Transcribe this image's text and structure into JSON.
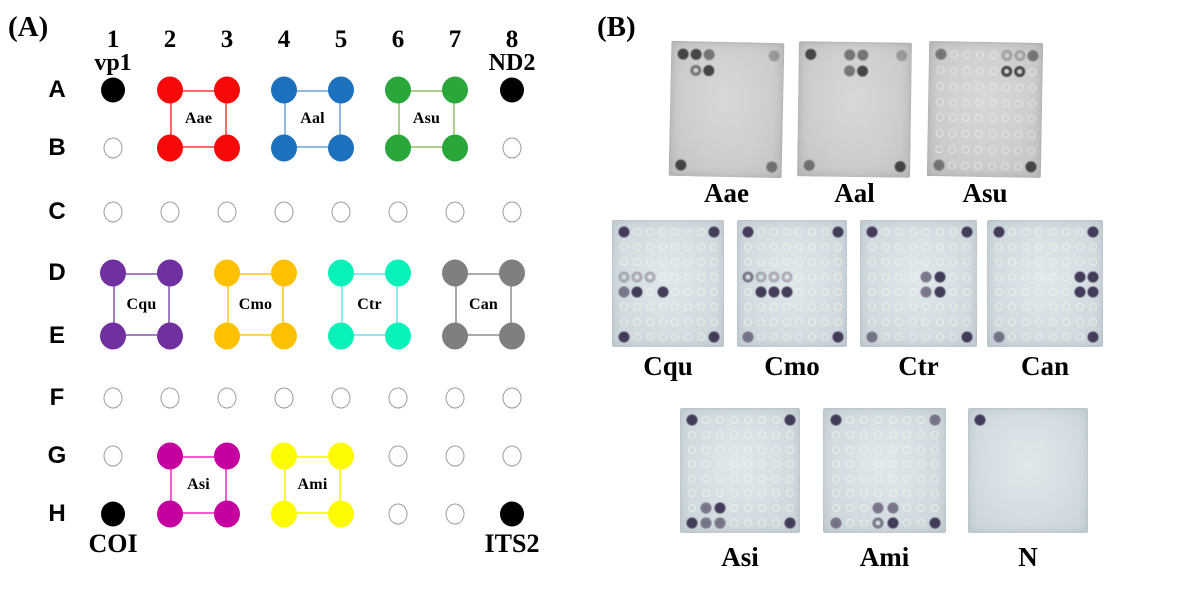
{
  "figure": {
    "panelA": {
      "label": "(A)",
      "col_headers": [
        "1",
        "2",
        "3",
        "4",
        "5",
        "6",
        "7",
        "8"
      ],
      "row_labels": [
        "A",
        "B",
        "C",
        "D",
        "E",
        "F",
        "G",
        "H"
      ],
      "marker_color": "#000000",
      "empty_spot_border": "#9b9b9b",
      "corner_markers": [
        {
          "gene": "vp1",
          "position": "A1",
          "label_pos": "above"
        },
        {
          "gene": "ND2",
          "position": "A8",
          "label_pos": "above"
        },
        {
          "gene": "COI",
          "position": "H1",
          "label_pos": "below"
        },
        {
          "gene": "ITS2",
          "position": "H8",
          "label_pos": "below"
        }
      ],
      "empty_spot_positions": [
        "B1",
        "B8",
        "C1",
        "C2",
        "C3",
        "C4",
        "C5",
        "C6",
        "C7",
        "C8",
        "F1",
        "F2",
        "F3",
        "F4",
        "F5",
        "F6",
        "F7",
        "F8",
        "G1",
        "G6",
        "G7",
        "G8",
        "H6",
        "H7"
      ],
      "species_groups": [
        {
          "label": "Aae",
          "rows": [
            "A",
            "B"
          ],
          "cols": [
            2,
            3
          ],
          "dot_color": "#f80909",
          "line_color": "#fb6a6a"
        },
        {
          "label": "Aal",
          "rows": [
            "A",
            "B"
          ],
          "cols": [
            4,
            5
          ],
          "dot_color": "#1d70bd",
          "line_color": "#93b9e0"
        },
        {
          "label": "Asu",
          "rows": [
            "A",
            "B"
          ],
          "cols": [
            6,
            7
          ],
          "dot_color": "#29a73b",
          "line_color": "#abd08d"
        },
        {
          "label": "Cqu",
          "rows": [
            "D",
            "E"
          ],
          "cols": [
            1,
            2
          ],
          "dot_color": "#7030a0",
          "line_color": "#a37fc5"
        },
        {
          "label": "Cmo",
          "rows": [
            "D",
            "E"
          ],
          "cols": [
            3,
            4
          ],
          "dot_color": "#fec101",
          "line_color": "#fcd44f"
        },
        {
          "label": "Ctr",
          "rows": [
            "D",
            "E"
          ],
          "cols": [
            5,
            6
          ],
          "dot_color": "#08f1b9",
          "line_color": "#92e6f2"
        },
        {
          "label": "Can",
          "rows": [
            "D",
            "E"
          ],
          "cols": [
            7,
            8
          ],
          "dot_color": "#7f7f7f",
          "line_color": "#ababab"
        },
        {
          "label": "Asi",
          "rows": [
            "G",
            "H"
          ],
          "cols": [
            2,
            3
          ],
          "dot_color": "#c4009e",
          "line_color": "#fb59d4"
        },
        {
          "label": "Ami",
          "rows": [
            "G",
            "H"
          ],
          "cols": [
            4,
            5
          ],
          "dot_color": "#fdfb02",
          "line_color": "#f8f832"
        }
      ]
    },
    "panelB": {
      "label": "(B)",
      "tones": {
        "gray": {
          "dot": "#3e3e3e",
          "ghost": "rgba(250,250,242,0.50)"
        },
        "blue": {
          "dot": "#3c3453",
          "ghost": "rgba(250,252,240,0.55)"
        }
      },
      "rows": [
        {
          "membranes": [
            {
              "label": "Aae",
              "tone": "gray",
              "ghost_grid": false,
              "dots": [
                "A1:dark",
                "A2:dark",
                "A3:med",
                "A8:faint",
                "B2:med:ring",
                "B3:dark",
                "H1:dark",
                "H8:med"
              ]
            },
            {
              "label": "Aal",
              "tone": "gray",
              "ghost_grid": false,
              "dots": [
                "A1:dark",
                "A4:med",
                "A5:med",
                "A8:faint",
                "B4:med",
                "B5:dark",
                "H1:med",
                "H8:dark"
              ]
            },
            {
              "label": "Asu",
              "tone": "gray",
              "ghost_grid": true,
              "dots": [
                "A1:med",
                "A6:faint:ring",
                "A7:faint:ring",
                "A8:med",
                "B6:dark:ring",
                "B7:dark:ring",
                "H1:med",
                "H8:dark"
              ]
            }
          ]
        },
        {
          "membranes": [
            {
              "label": "Cqu",
              "tone": "blue",
              "ghost_grid": true,
              "dots": [
                "A1:dark",
                "A8:dark",
                "D1:faint:ring",
                "D2:faint:ring",
                "D3:faint:ring",
                "E1:med",
                "E2:dark",
                "E4:dark",
                "H1:dark",
                "H8:dark"
              ]
            },
            {
              "label": "Cmo",
              "tone": "blue",
              "ghost_grid": true,
              "dots": [
                "A1:dark",
                "A8:dark",
                "D1:med:ring",
                "D2:faint:ring",
                "D3:faint:ring",
                "D4:faint:ring",
                "E2:dark",
                "E3:dark",
                "E4:dark",
                "H1:med",
                "H8:dark"
              ]
            },
            {
              "label": "Ctr",
              "tone": "blue",
              "ghost_grid": true,
              "dots": [
                "A1:dark",
                "A8:dark",
                "D5:med",
                "D6:dark",
                "E5:med",
                "E6:dark",
                "H1:med",
                "H8:dark"
              ]
            },
            {
              "label": "Can",
              "tone": "blue",
              "ghost_grid": true,
              "dots": [
                "A1:dark",
                "A8:dark",
                "D7:dark",
                "D8:dark",
                "E7:dark",
                "E8:dark",
                "H1:med",
                "H8:dark"
              ]
            }
          ]
        },
        {
          "membranes": [
            {
              "label": "Asi",
              "tone": "blue",
              "ghost_grid": true,
              "dots": [
                "A1:dark",
                "A8:dark",
                "G2:med",
                "G3:dark",
                "H1:dark",
                "H2:med",
                "H3:med",
                "H8:dark"
              ]
            },
            {
              "label": "Ami",
              "tone": "blue",
              "ghost_grid": true,
              "dots": [
                "A1:dark",
                "A8:med",
                "G4:med",
                "G5:med",
                "H1:med",
                "H4:med:ring",
                "H5:dark",
                "H8:dark"
              ]
            },
            {
              "label": "N",
              "tone": "blue",
              "ghost_grid": false,
              "dots": [
                "A1:dark"
              ]
            }
          ]
        }
      ]
    }
  }
}
